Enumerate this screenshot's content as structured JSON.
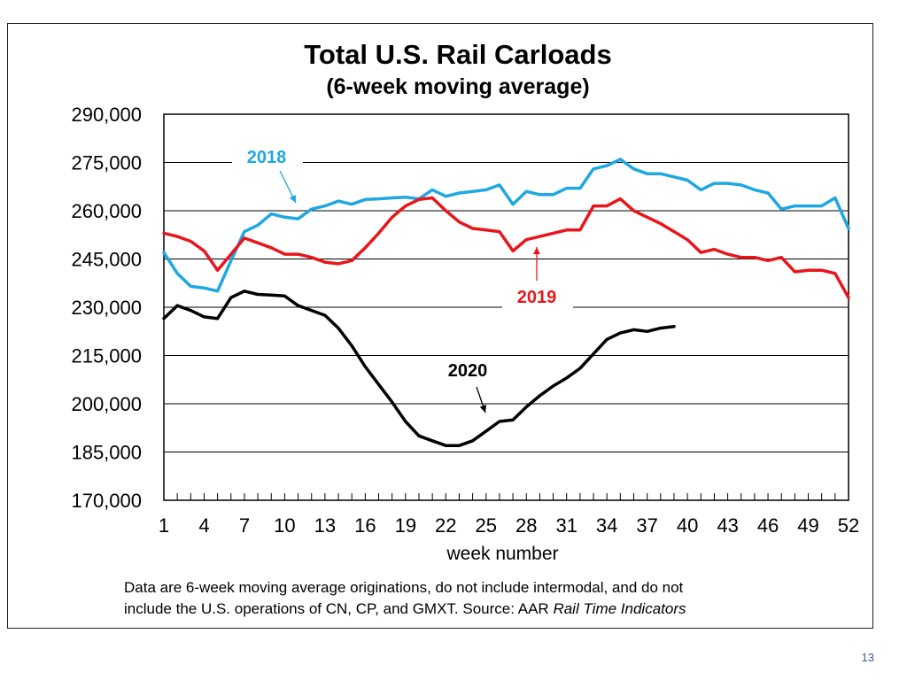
{
  "chart_data": {
    "type": "line",
    "title": "Total U.S. Rail Carloads",
    "subtitle": "(6-week moving average)",
    "xlabel": "week number",
    "ylabel": "",
    "ylim": [
      170000,
      290000
    ],
    "xlim": [
      1,
      52
    ],
    "ytick_labels": [
      "290,000",
      "275,000",
      "260,000",
      "245,000",
      "230,000",
      "215,000",
      "200,000",
      "185,000",
      "170,000"
    ],
    "ytick_values": [
      290000,
      275000,
      260000,
      245000,
      230000,
      215000,
      200000,
      185000,
      170000
    ],
    "xtick_labels": [
      "1",
      "4",
      "7",
      "10",
      "13",
      "16",
      "19",
      "22",
      "25",
      "28",
      "31",
      "34",
      "37",
      "40",
      "43",
      "46",
      "49",
      "52"
    ],
    "xtick_values": [
      1,
      4,
      7,
      10,
      13,
      16,
      19,
      22,
      25,
      28,
      31,
      34,
      37,
      40,
      43,
      46,
      49,
      52
    ],
    "grid": true,
    "series": [
      {
        "name": "2018",
        "color": "#1ea7e1",
        "values": [
          247000,
          240500,
          236500,
          236000,
          235000,
          244500,
          253500,
          255500,
          259000,
          258000,
          257500,
          260500,
          261500,
          263000,
          262000,
          263500,
          263700,
          264000,
          264200,
          263700,
          266500,
          264500,
          265500,
          266000,
          266500,
          268000,
          262000,
          266000,
          265000,
          265000,
          267000,
          267000,
          273000,
          274000,
          276000,
          273000,
          271500,
          271500,
          270500,
          269500,
          266500,
          268500,
          268500,
          268000,
          266500,
          265500,
          260500,
          261500,
          261500,
          261500,
          264000,
          254500
        ]
      },
      {
        "name": "2019",
        "color": "#e8161b",
        "values": [
          253000,
          252000,
          250500,
          247500,
          241500,
          246500,
          251500,
          250000,
          248500,
          246500,
          246500,
          245500,
          244000,
          243500,
          244500,
          248500,
          253000,
          258000,
          261500,
          263500,
          264000,
          260000,
          256500,
          254500,
          254000,
          253500,
          247500,
          251000,
          252000,
          253000,
          254000,
          254000,
          261500,
          261500,
          263700,
          260000,
          258000,
          256000,
          253500,
          251000,
          247000,
          248000,
          246500,
          245500,
          245500,
          244500,
          245500,
          241000,
          241500,
          241500,
          240500,
          233000
        ]
      },
      {
        "name": "2020",
        "color": "#000000",
        "values": [
          226500,
          230500,
          229000,
          227000,
          226500,
          233000,
          235000,
          234000,
          233800,
          233500,
          230500,
          229000,
          227500,
          223500,
          218000,
          211500,
          206000,
          200500,
          194500,
          190000,
          188500,
          187000,
          187000,
          188500,
          191500,
          194500,
          195000,
          199000,
          202500,
          205500,
          208000,
          211000,
          215500,
          220000,
          222000,
          223000,
          222500,
          223500,
          224000
        ]
      }
    ],
    "annotations": [
      {
        "text": "2018",
        "series": "2018"
      },
      {
        "text": "2019",
        "series": "2019"
      },
      {
        "text": "2020",
        "series": "2020"
      }
    ]
  },
  "footnote": {
    "line1": "Data are 6-week moving average originations, do not include intermodal, and do not",
    "line2_prefix": "include the U.S. operations of CN, CP, and GMXT.   Source: AAR ",
    "line2_italic": "Rail Time Indicators"
  },
  "page_number": "13"
}
